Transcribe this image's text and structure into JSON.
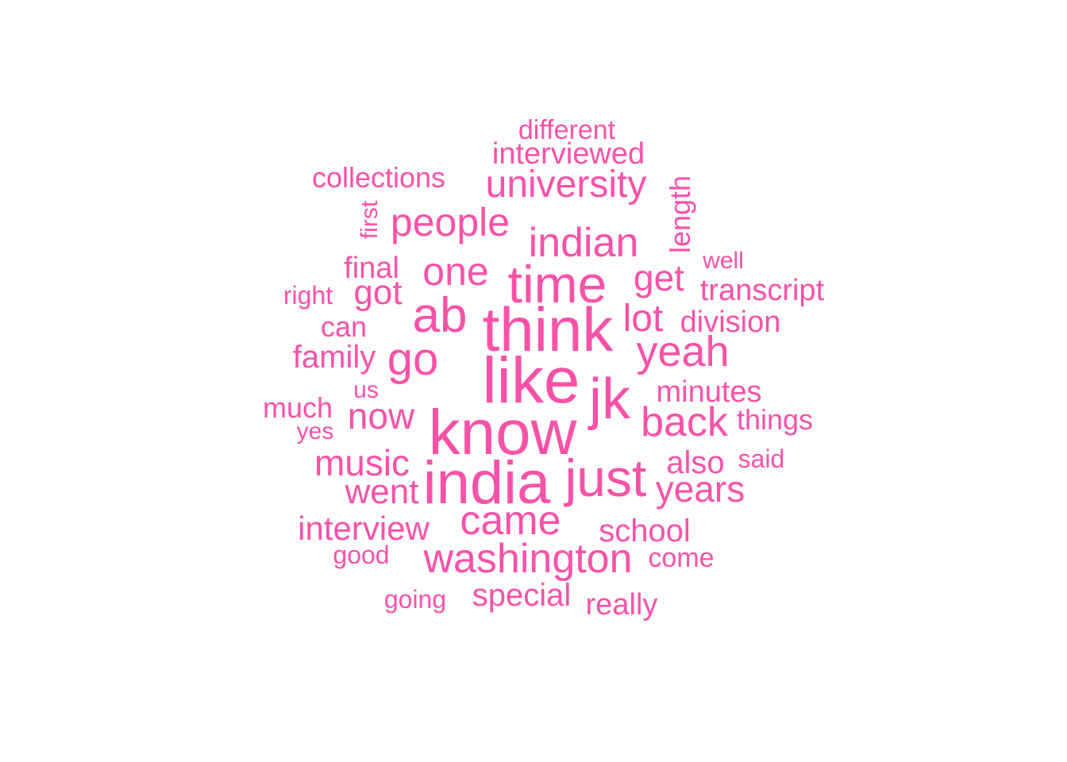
{
  "word_cloud": {
    "color": "#F752A8",
    "words": [
      "different",
      "interviewed",
      "collections",
      "university",
      "length",
      "first",
      "people",
      "indian",
      "well",
      "final",
      "one",
      "get",
      "time",
      "right",
      "got",
      "transcript",
      "ab",
      "lot",
      "division",
      "can",
      "think",
      "yeah",
      "family",
      "go",
      "us",
      "like",
      "jk",
      "minutes",
      "much",
      "now",
      "back",
      "things",
      "yes",
      "know",
      "music",
      "also",
      "said",
      "india",
      "just",
      "went",
      "years",
      "came",
      "interview",
      "school",
      "good",
      "washington",
      "come",
      "special",
      "going",
      "really"
    ]
  }
}
